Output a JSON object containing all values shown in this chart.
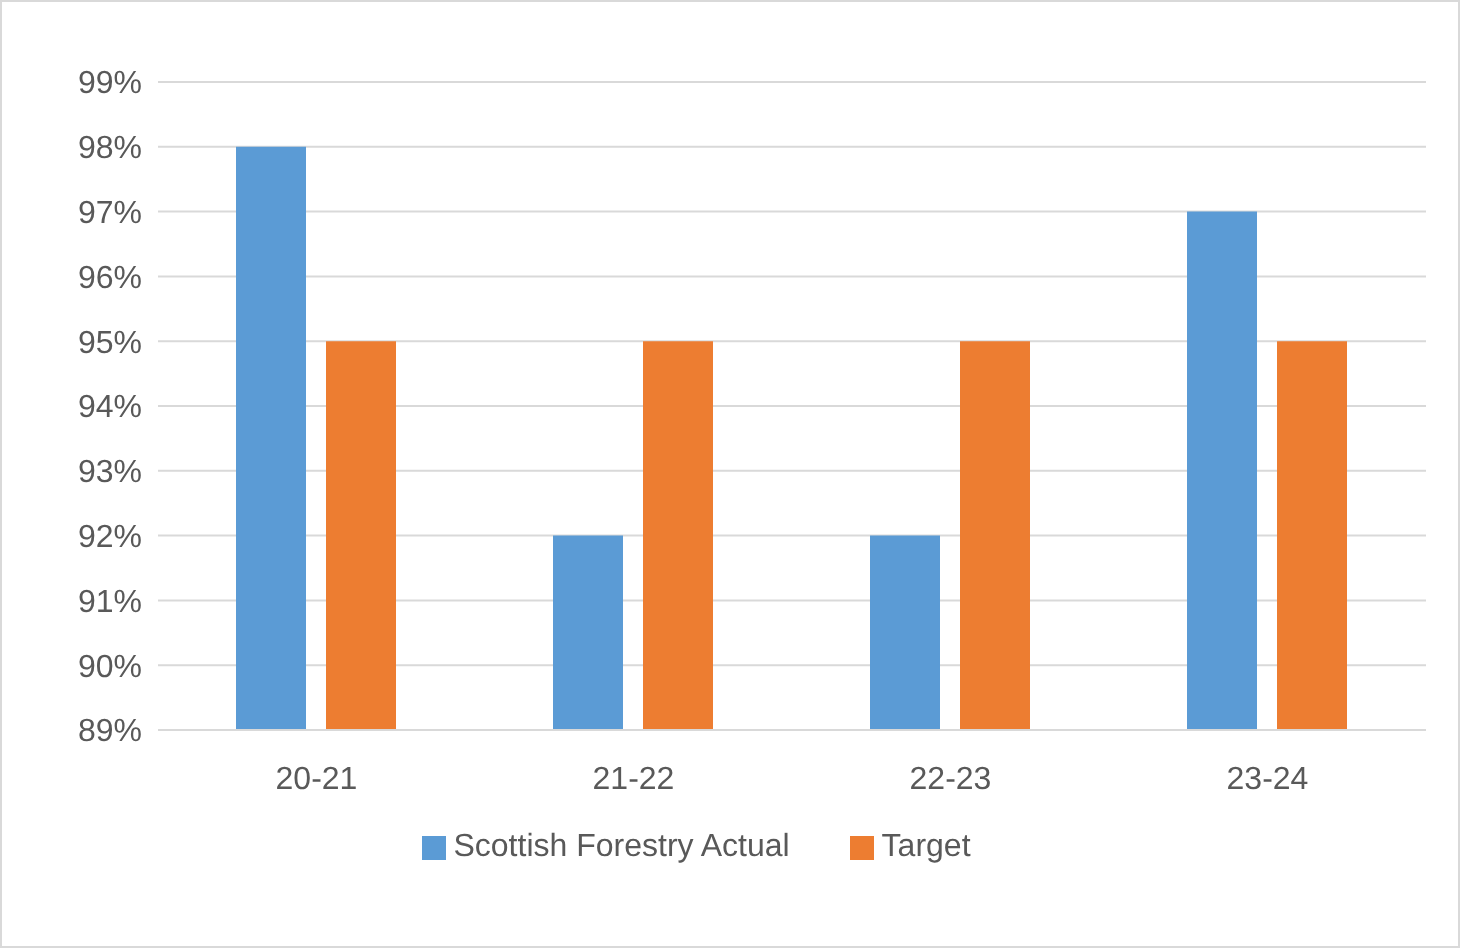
{
  "chart_data": {
    "type": "bar",
    "categories": [
      "20-21",
      "21-22",
      "22-23",
      "23-24"
    ],
    "series": [
      {
        "name": "Scottish Forestry Actual",
        "color": "#5b9bd5",
        "values": [
          98,
          92,
          92,
          97
        ]
      },
      {
        "name": "Target",
        "color": "#ed7d31",
        "values": [
          95,
          95,
          95,
          95
        ]
      }
    ],
    "ylim": [
      89,
      99
    ],
    "yticks": [
      {
        "value": 89,
        "label": "89%"
      },
      {
        "value": 90,
        "label": "90%"
      },
      {
        "value": 91,
        "label": "91%"
      },
      {
        "value": 92,
        "label": "92%"
      },
      {
        "value": 93,
        "label": "93%"
      },
      {
        "value": 94,
        "label": "94%"
      },
      {
        "value": 95,
        "label": "95%"
      },
      {
        "value": 96,
        "label": "96%"
      },
      {
        "value": 97,
        "label": "97%"
      },
      {
        "value": 98,
        "label": "98%"
      },
      {
        "value": 99,
        "label": "99%"
      }
    ],
    "grid": "y",
    "legend": "bottom"
  }
}
